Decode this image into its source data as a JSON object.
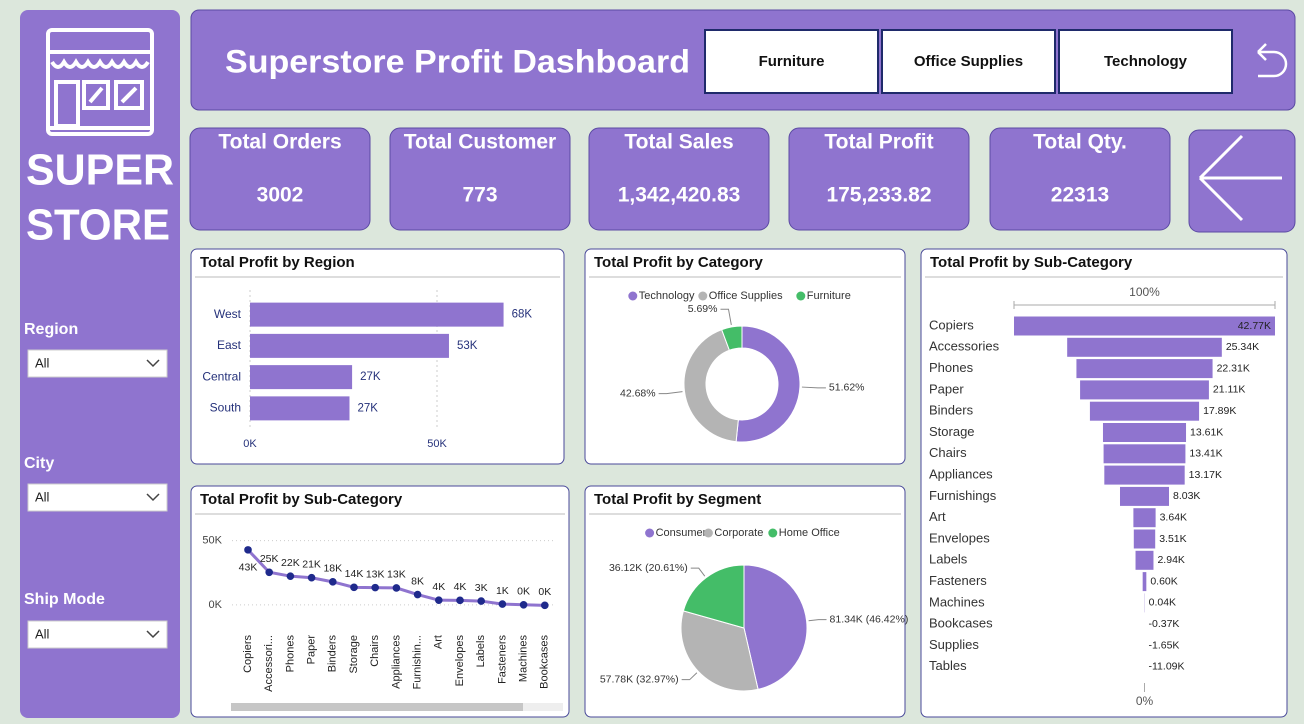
{
  "sidebar": {
    "logo_line1": "SUPER",
    "logo_line2": "STORE",
    "filters": [
      {
        "label": "Region",
        "value": "All"
      },
      {
        "label": "City",
        "value": "All"
      },
      {
        "label": "Ship Mode",
        "value": "All"
      }
    ]
  },
  "header": {
    "title": "Superstore Profit Dashboard",
    "buttons": [
      "Furniture",
      "Office Supplies",
      "Technology"
    ]
  },
  "kpis": [
    {
      "label": "Total Orders",
      "value": "3002"
    },
    {
      "label": "Total Customer",
      "value": "773"
    },
    {
      "label": "Total Sales",
      "value": "1,342,420.83"
    },
    {
      "label": "Total Profit",
      "value": "175,233.82"
    },
    {
      "label": "Total Qty.",
      "value": "22313"
    }
  ],
  "chart_data": [
    {
      "type": "hbar",
      "title": "Total Profit by Region",
      "categories": [
        "West",
        "East",
        "Central",
        "South"
      ],
      "values": [
        67800,
        53200,
        27300,
        26600
      ],
      "value_labels": [
        "68K",
        "53K",
        "27K",
        "27K"
      ],
      "color": "#8f74cf",
      "xlim": [
        0,
        75000
      ],
      "xticks": [
        {
          "value": 0,
          "label": "0K"
        },
        {
          "value": 50000,
          "label": "50K"
        }
      ],
      "grid": true
    },
    {
      "type": "donut",
      "title": "Total Profit by Category",
      "categories": [
        "Technology",
        "Office Supplies",
        "Furniture"
      ],
      "values": [
        51.62,
        42.68,
        5.69
      ],
      "value_labels": [
        "51.62%",
        "42.68%",
        "5.69%"
      ],
      "colors": [
        "#8f74cf",
        "#b4b4b4",
        "#44bd68"
      ]
    },
    {
      "type": "line",
      "title": "Total Profit by Sub-Category",
      "categories": [
        "Copiers",
        "Accessori...",
        "Phones",
        "Paper",
        "Binders",
        "Storage",
        "Chairs",
        "Appliances",
        "Furnishin...",
        "Art",
        "Envelopes",
        "Labels",
        "Fasteners",
        "Machines",
        "Bookcases"
      ],
      "values": [
        42770,
        25340,
        22310,
        21110,
        17890,
        13610,
        13410,
        13170,
        8030,
        3640,
        3510,
        2940,
        600,
        40,
        -370
      ],
      "value_labels": [
        "43K",
        "25K",
        "22K",
        "21K",
        "18K",
        "14K",
        "13K",
        "13K",
        "8K",
        "4K",
        "4K",
        "3K",
        "1K",
        "0K",
        "0K"
      ],
      "color": "#8f74cf",
      "marker_color": "#1f2a8c",
      "ylim": [
        -4000,
        52000
      ],
      "yticks": [
        {
          "value": 0,
          "label": "0K"
        },
        {
          "value": 50000,
          "label": "50K"
        }
      ],
      "grid": true
    },
    {
      "type": "funnel",
      "title": "Total Profit by Sub-Category",
      "categories": [
        "Copiers",
        "Accessories",
        "Phones",
        "Paper",
        "Binders",
        "Storage",
        "Chairs",
        "Appliances",
        "Furnishings",
        "Art",
        "Envelopes",
        "Labels",
        "Fasteners",
        "Machines",
        "Bookcases",
        "Supplies",
        "Tables"
      ],
      "values": [
        42770,
        25340,
        22310,
        21110,
        17890,
        13610,
        13410,
        13170,
        8030,
        3640,
        3510,
        2940,
        600,
        40,
        -370,
        -1650,
        -11090
      ],
      "value_labels": [
        "42.77K",
        "25.34K",
        "22.31K",
        "21.11K",
        "17.89K",
        "13.61K",
        "13.41K",
        "13.17K",
        "8.03K",
        "3.64K",
        "3.51K",
        "2.94K",
        "0.60K",
        "0.04K",
        "-0.37K",
        "-1.65K",
        "-11.09K"
      ],
      "color": "#8f74cf",
      "top_label": "100%",
      "bottom_label": "0%"
    },
    {
      "type": "pie",
      "title": "Total Profit by Segment",
      "categories": [
        "Consumer",
        "Corporate",
        "Home Office"
      ],
      "values": [
        81340,
        57780,
        36120
      ],
      "value_labels": [
        "81.34K (46.42%)",
        "57.78K (32.97%)",
        "36.12K (20.61%)"
      ],
      "colors": [
        "#8f74cf",
        "#b4b4b4",
        "#44bd68"
      ]
    }
  ]
}
